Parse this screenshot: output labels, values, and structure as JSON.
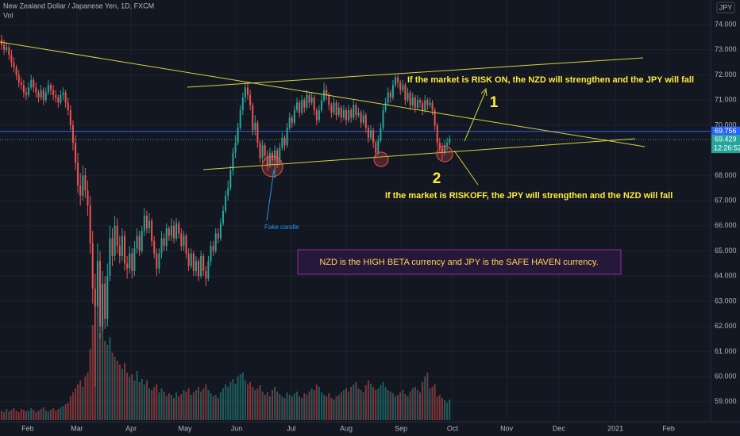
{
  "chart_data": {
    "type": "candlestick",
    "title": "New Zealand Dollar / Japanese Yen, 1D, FXCM",
    "volume_label": "Vol",
    "currency": "JPY",
    "up_color": "#26a69a",
    "down_color": "#ef5350",
    "xlim": [
      -0.65,
      288.06
    ],
    "xticks": [
      {
        "value": 10.6,
        "label": "Feb"
      },
      {
        "value": 30.6,
        "label": "Mar"
      },
      {
        "value": 52.6,
        "label": "Apr"
      },
      {
        "value": 74.5,
        "label": "May"
      },
      {
        "value": 95.5,
        "label": "Jun"
      },
      {
        "value": 117.7,
        "label": "Jul"
      },
      {
        "value": 140,
        "label": "Aug"
      },
      {
        "value": 162.3,
        "label": "Sep"
      },
      {
        "value": 183.2,
        "label": "Oct"
      },
      {
        "value": 205.2,
        "label": "Nov"
      },
      {
        "value": 226.4,
        "label": "Dec"
      },
      {
        "value": 249.4,
        "label": "2021"
      },
      {
        "value": 271,
        "label": "Feb"
      }
    ],
    "ylim": [
      58.27,
      74.98
    ],
    "yticks": [
      {
        "value": 59,
        "label": "59.000"
      },
      {
        "value": 60,
        "label": "60.000"
      },
      {
        "value": 61,
        "label": "61.000"
      },
      {
        "value": 62,
        "label": "62.000"
      },
      {
        "value": 63,
        "label": "63.000"
      },
      {
        "value": 64,
        "label": "64.000"
      },
      {
        "value": 65,
        "label": "65.000"
      },
      {
        "value": 66,
        "label": "66.000"
      },
      {
        "value": 67,
        "label": "67.000"
      },
      {
        "value": 68,
        "label": "68.000"
      },
      {
        "value": 70,
        "label": "70.000"
      },
      {
        "value": 71,
        "label": "71.000"
      },
      {
        "value": 72,
        "label": "72.000"
      },
      {
        "value": 73,
        "label": "73.000"
      },
      {
        "value": 74,
        "label": "74.000"
      }
    ],
    "level_line": {
      "value": 69.756,
      "label": "69.756",
      "color": "#2962ff"
    },
    "last_price": {
      "value": 69.429,
      "label": "69.429"
    },
    "countdown": "12:26:52",
    "vlim": [
      0,
      160
    ],
    "ohlc": [
      [
        73.4,
        73.6,
        73.0,
        73.2
      ],
      [
        73.2,
        73.4,
        72.8,
        73.0
      ],
      [
        73.0,
        73.3,
        72.9,
        73.1
      ],
      [
        73.1,
        73.2,
        72.6,
        72.8
      ],
      [
        72.8,
        73.0,
        72.3,
        72.5
      ],
      [
        72.5,
        72.7,
        72.1,
        72.3
      ],
      [
        72.3,
        72.4,
        71.8,
        72.0
      ],
      [
        72.0,
        72.2,
        71.5,
        71.7
      ],
      [
        71.7,
        71.9,
        71.4,
        71.6
      ],
      [
        71.6,
        71.8,
        71.1,
        71.3
      ],
      [
        71.3,
        71.5,
        71.0,
        71.2
      ],
      [
        71.2,
        71.7,
        71.1,
        71.5
      ],
      [
        71.5,
        72.0,
        71.4,
        71.8
      ],
      [
        71.8,
        71.9,
        71.3,
        71.5
      ],
      [
        71.5,
        71.7,
        71.1,
        71.3
      ],
      [
        71.3,
        71.4,
        70.9,
        71.1
      ],
      [
        71.1,
        71.6,
        71.0,
        71.4
      ],
      [
        71.4,
        71.5,
        70.8,
        71.0
      ],
      [
        71.0,
        71.5,
        70.9,
        71.3
      ],
      [
        71.3,
        71.8,
        71.2,
        71.6
      ],
      [
        71.6,
        71.7,
        71.2,
        71.4
      ],
      [
        71.4,
        71.6,
        71.0,
        71.2
      ],
      [
        71.2,
        71.4,
        70.9,
        71.1
      ],
      [
        71.1,
        71.2,
        70.7,
        70.9
      ],
      [
        70.9,
        71.4,
        70.8,
        71.2
      ],
      [
        71.2,
        71.5,
        71.0,
        71.3
      ],
      [
        71.3,
        71.4,
        70.7,
        70.9
      ],
      [
        70.9,
        71.1,
        70.4,
        70.6
      ],
      [
        70.6,
        70.8,
        69.8,
        70.0
      ],
      [
        70.0,
        70.2,
        69.0,
        69.3
      ],
      [
        69.3,
        69.6,
        68.2,
        68.5
      ],
      [
        68.5,
        68.9,
        67.3,
        67.6
      ],
      [
        67.6,
        68.1,
        66.8,
        67.2
      ],
      [
        67.2,
        68.4,
        67.0,
        68.0
      ],
      [
        68.0,
        68.3,
        67.1,
        67.4
      ],
      [
        67.4,
        67.8,
        66.4,
        66.8
      ],
      [
        66.8,
        67.2,
        64.9,
        65.3
      ],
      [
        65.3,
        65.8,
        62.9,
        63.5
      ],
      [
        63.5,
        64.1,
        59.6,
        62.8
      ],
      [
        62.8,
        65.3,
        62.5,
        64.6
      ],
      [
        64.6,
        65.0,
        61.5,
        62.0
      ],
      [
        62.0,
        64.2,
        61.8,
        63.7
      ],
      [
        63.7,
        64.0,
        61.9,
        62.3
      ],
      [
        62.3,
        64.5,
        62.0,
        64.0
      ],
      [
        64.0,
        66.0,
        63.8,
        65.5
      ],
      [
        65.5,
        65.9,
        64.4,
        64.8
      ],
      [
        64.8,
        66.4,
        64.6,
        66.0
      ],
      [
        66.0,
        66.3,
        64.9,
        65.2
      ],
      [
        65.2,
        65.6,
        64.5,
        64.8
      ],
      [
        64.8,
        65.9,
        64.6,
        65.6
      ],
      [
        65.6,
        65.8,
        64.2,
        64.5
      ],
      [
        64.5,
        64.8,
        63.9,
        64.3
      ],
      [
        64.3,
        65.2,
        64.1,
        64.9
      ],
      [
        64.9,
        65.1,
        63.9,
        64.2
      ],
      [
        64.2,
        65.4,
        64.0,
        65.1
      ],
      [
        65.1,
        65.9,
        64.9,
        65.6
      ],
      [
        65.6,
        65.8,
        64.8,
        65.0
      ],
      [
        65.0,
        66.0,
        64.9,
        65.8
      ],
      [
        65.8,
        66.7,
        65.6,
        66.4
      ],
      [
        66.4,
        66.6,
        65.7,
        65.9
      ],
      [
        65.9,
        66.5,
        65.7,
        66.2
      ],
      [
        66.2,
        66.3,
        65.2,
        65.4
      ],
      [
        65.4,
        65.6,
        64.7,
        64.9
      ],
      [
        64.9,
        65.1,
        64.0,
        64.3
      ],
      [
        64.3,
        65.1,
        64.1,
        64.9
      ],
      [
        64.9,
        65.8,
        64.7,
        65.5
      ],
      [
        65.5,
        65.7,
        65.0,
        65.2
      ],
      [
        65.2,
        66.1,
        65.0,
        65.9
      ],
      [
        65.9,
        66.0,
        65.4,
        65.6
      ],
      [
        65.6,
        66.3,
        65.4,
        66.0
      ],
      [
        66.0,
        66.2,
        65.3,
        65.5
      ],
      [
        65.5,
        66.3,
        65.4,
        66.1
      ],
      [
        66.1,
        66.2,
        65.5,
        65.7
      ],
      [
        65.7,
        65.9,
        65.0,
        65.2
      ],
      [
        65.2,
        65.8,
        65.0,
        65.6
      ],
      [
        65.6,
        65.7,
        64.7,
        64.9
      ],
      [
        64.9,
        65.1,
        64.2,
        64.4
      ],
      [
        64.4,
        65.1,
        64.3,
        64.9
      ],
      [
        64.9,
        65.0,
        64.0,
        64.2
      ],
      [
        64.2,
        64.8,
        64.0,
        64.6
      ],
      [
        64.6,
        64.7,
        63.8,
        64.0
      ],
      [
        64.0,
        65.0,
        63.9,
        64.8
      ],
      [
        64.8,
        64.9,
        64.0,
        64.2
      ],
      [
        64.2,
        64.4,
        63.6,
        63.9
      ],
      [
        63.9,
        64.8,
        63.8,
        64.6
      ],
      [
        64.6,
        65.4,
        64.4,
        65.2
      ],
      [
        65.2,
        65.4,
        64.8,
        65.0
      ],
      [
        65.0,
        65.9,
        64.9,
        65.7
      ],
      [
        65.7,
        65.9,
        65.3,
        65.5
      ],
      [
        65.5,
        66.3,
        65.4,
        66.1
      ],
      [
        66.1,
        66.8,
        66.0,
        66.6
      ],
      [
        66.6,
        67.4,
        66.5,
        67.2
      ],
      [
        67.2,
        67.8,
        67.0,
        67.5
      ],
      [
        67.5,
        68.4,
        67.4,
        68.2
      ],
      [
        68.2,
        69.1,
        68.0,
        68.9
      ],
      [
        68.9,
        69.6,
        68.7,
        69.3
      ],
      [
        69.3,
        70.1,
        69.2,
        69.9
      ],
      [
        69.9,
        70.8,
        69.8,
        70.6
      ],
      [
        70.6,
        71.3,
        70.4,
        71.1
      ],
      [
        71.1,
        71.7,
        70.9,
        71.5
      ],
      [
        71.5,
        71.7,
        71.0,
        71.2
      ],
      [
        71.2,
        71.4,
        70.6,
        70.8
      ],
      [
        70.8,
        70.9,
        69.6,
        69.8
      ],
      [
        69.8,
        70.4,
        69.6,
        70.1
      ],
      [
        70.1,
        70.2,
        69.1,
        69.3
      ],
      [
        69.3,
        69.4,
        68.5,
        68.7
      ],
      [
        68.7,
        69.4,
        68.5,
        69.2
      ],
      [
        69.2,
        69.3,
        68.6,
        68.8
      ],
      [
        68.8,
        69.0,
        68.2,
        68.4
      ],
      [
        68.4,
        69.1,
        68.3,
        68.9
      ],
      [
        68.9,
        69.0,
        68.4,
        68.6
      ],
      [
        68.6,
        69.2,
        67.9,
        69.0
      ],
      [
        69.0,
        69.1,
        68.3,
        68.5
      ],
      [
        68.5,
        69.3,
        68.4,
        69.1
      ],
      [
        69.1,
        69.7,
        69.0,
        69.5
      ],
      [
        69.5,
        69.6,
        69.0,
        69.2
      ],
      [
        69.2,
        70.1,
        69.1,
        69.9
      ],
      [
        69.9,
        70.5,
        69.8,
        70.3
      ],
      [
        70.3,
        70.4,
        69.9,
        70.1
      ],
      [
        70.1,
        70.8,
        70.0,
        70.6
      ],
      [
        70.6,
        71.1,
        70.5,
        70.9
      ],
      [
        70.9,
        71.0,
        70.3,
        70.5
      ],
      [
        70.5,
        71.2,
        70.4,
        71.0
      ],
      [
        71.0,
        71.1,
        70.5,
        70.7
      ],
      [
        70.7,
        71.4,
        70.6,
        71.2
      ],
      [
        71.2,
        71.3,
        70.7,
        70.9
      ],
      [
        70.9,
        71.3,
        70.8,
        71.1
      ],
      [
        71.1,
        71.2,
        70.4,
        70.6
      ],
      [
        70.6,
        70.7,
        70.0,
        70.2
      ],
      [
        70.2,
        70.8,
        70.1,
        70.6
      ],
      [
        70.6,
        71.2,
        70.5,
        71.0
      ],
      [
        71.0,
        71.7,
        70.9,
        71.4
      ],
      [
        71.4,
        71.6,
        71.0,
        71.2
      ],
      [
        71.2,
        71.3,
        70.6,
        70.8
      ],
      [
        70.8,
        70.9,
        70.3,
        70.5
      ],
      [
        70.5,
        71.1,
        70.4,
        70.9
      ],
      [
        70.9,
        71.0,
        70.2,
        70.4
      ],
      [
        70.4,
        70.9,
        70.3,
        70.7
      ],
      [
        70.7,
        70.8,
        70.1,
        70.3
      ],
      [
        70.3,
        70.8,
        70.2,
        70.6
      ],
      [
        70.6,
        70.7,
        70.0,
        70.2
      ],
      [
        70.2,
        70.8,
        70.1,
        70.6
      ],
      [
        70.6,
        70.7,
        70.1,
        70.3
      ],
      [
        70.3,
        71.0,
        70.2,
        70.8
      ],
      [
        70.8,
        70.9,
        70.2,
        70.4
      ],
      [
        70.4,
        70.7,
        70.3,
        70.5
      ],
      [
        70.5,
        70.6,
        69.9,
        70.1
      ],
      [
        70.1,
        70.6,
        70.0,
        70.4
      ],
      [
        70.4,
        70.5,
        69.7,
        69.9
      ],
      [
        69.9,
        70.0,
        69.3,
        69.5
      ],
      [
        69.5,
        70.0,
        69.4,
        69.8
      ],
      [
        69.8,
        69.9,
        69.1,
        69.3
      ],
      [
        69.3,
        69.4,
        68.7,
        68.9
      ],
      [
        68.9,
        69.6,
        68.8,
        69.4
      ],
      [
        69.4,
        70.1,
        69.3,
        69.9
      ],
      [
        69.9,
        70.8,
        69.8,
        70.6
      ],
      [
        70.6,
        71.1,
        70.5,
        70.9
      ],
      [
        70.9,
        71.5,
        70.8,
        71.3
      ],
      [
        71.3,
        71.4,
        70.9,
        71.1
      ],
      [
        71.1,
        71.8,
        71.0,
        71.6
      ],
      [
        71.6,
        72.0,
        71.5,
        71.9
      ],
      [
        71.9,
        72.0,
        71.5,
        71.7
      ],
      [
        71.7,
        71.8,
        71.2,
        71.4
      ],
      [
        71.4,
        71.8,
        71.3,
        71.6
      ],
      [
        71.6,
        71.7,
        70.8,
        71.0
      ],
      [
        71.0,
        71.5,
        70.9,
        71.3
      ],
      [
        71.3,
        71.4,
        70.6,
        70.8
      ],
      [
        70.8,
        71.3,
        70.7,
        71.1
      ],
      [
        71.1,
        71.2,
        70.5,
        70.7
      ],
      [
        70.7,
        71.2,
        70.6,
        71.0
      ],
      [
        71.0,
        71.1,
        70.7,
        70.9
      ],
      [
        70.9,
        71.0,
        70.4,
        70.6
      ],
      [
        70.6,
        71.2,
        70.5,
        71.0
      ],
      [
        71.0,
        71.1,
        70.6,
        70.8
      ],
      [
        70.8,
        71.1,
        70.7,
        70.9
      ],
      [
        70.9,
        71.0,
        70.4,
        70.6
      ],
      [
        70.6,
        70.7,
        69.8,
        70.0
      ],
      [
        70.0,
        70.1,
        69.1,
        69.3
      ],
      [
        69.3,
        69.5,
        68.9,
        69.1
      ],
      [
        69.1,
        69.3,
        68.6,
        68.9
      ],
      [
        68.9,
        69.4,
        68.8,
        69.2
      ],
      [
        69.2,
        69.5,
        69.0,
        69.3
      ],
      [
        69.3,
        69.6,
        69.2,
        69.43
      ]
    ],
    "volume": [
      12,
      10,
      14,
      11,
      13,
      15,
      12,
      10,
      14,
      13,
      11,
      12,
      15,
      13,
      10,
      12,
      14,
      16,
      12,
      11,
      13,
      15,
      12,
      14,
      16,
      18,
      20,
      22,
      30,
      35,
      40,
      45,
      50,
      42,
      55,
      60,
      90,
      120,
      150,
      135,
      110,
      125,
      100,
      95,
      105,
      85,
      80,
      75,
      70,
      65,
      72,
      60,
      55,
      58,
      50,
      62,
      48,
      52,
      45,
      50,
      40,
      38,
      42,
      45,
      35,
      40,
      36,
      30,
      34,
      32,
      28,
      35,
      30,
      33,
      38,
      36,
      40,
      32,
      35,
      38,
      42,
      36,
      40,
      45,
      38,
      34,
      30,
      32,
      28,
      35,
      40,
      45,
      42,
      48,
      52,
      46,
      55,
      58,
      60,
      50,
      45,
      48,
      42,
      38,
      40,
      44,
      36,
      32,
      35,
      30,
      38,
      42,
      36,
      33,
      30,
      28,
      35,
      32,
      30,
      34,
      36,
      30,
      28,
      34,
      32,
      36,
      40,
      38,
      45,
      42,
      35,
      32,
      30,
      34,
      28,
      26,
      30,
      32,
      35,
      38,
      40,
      36,
      42,
      45,
      48,
      40,
      38,
      35,
      44,
      50,
      46,
      42,
      38,
      40,
      44,
      48,
      42,
      38,
      36,
      34,
      30,
      32,
      35,
      38,
      33,
      30,
      36,
      40,
      42,
      38,
      35,
      48,
      55,
      60,
      40,
      42,
      45,
      30,
      32,
      28,
      25,
      22,
      26
    ],
    "annotations": {
      "risk_on": "If the market is RISK ON, the NZD will strengthen and the JPY will fall",
      "label_1": "1",
      "label_2": "2",
      "risk_off": "If the market is RISKOFF, the JPY will strengthen and the NZD will fall",
      "fake_candle": "Fake candle",
      "note": "NZD is the HIGH BETA currency and JPY is the SAFE HAVEN currency."
    }
  }
}
